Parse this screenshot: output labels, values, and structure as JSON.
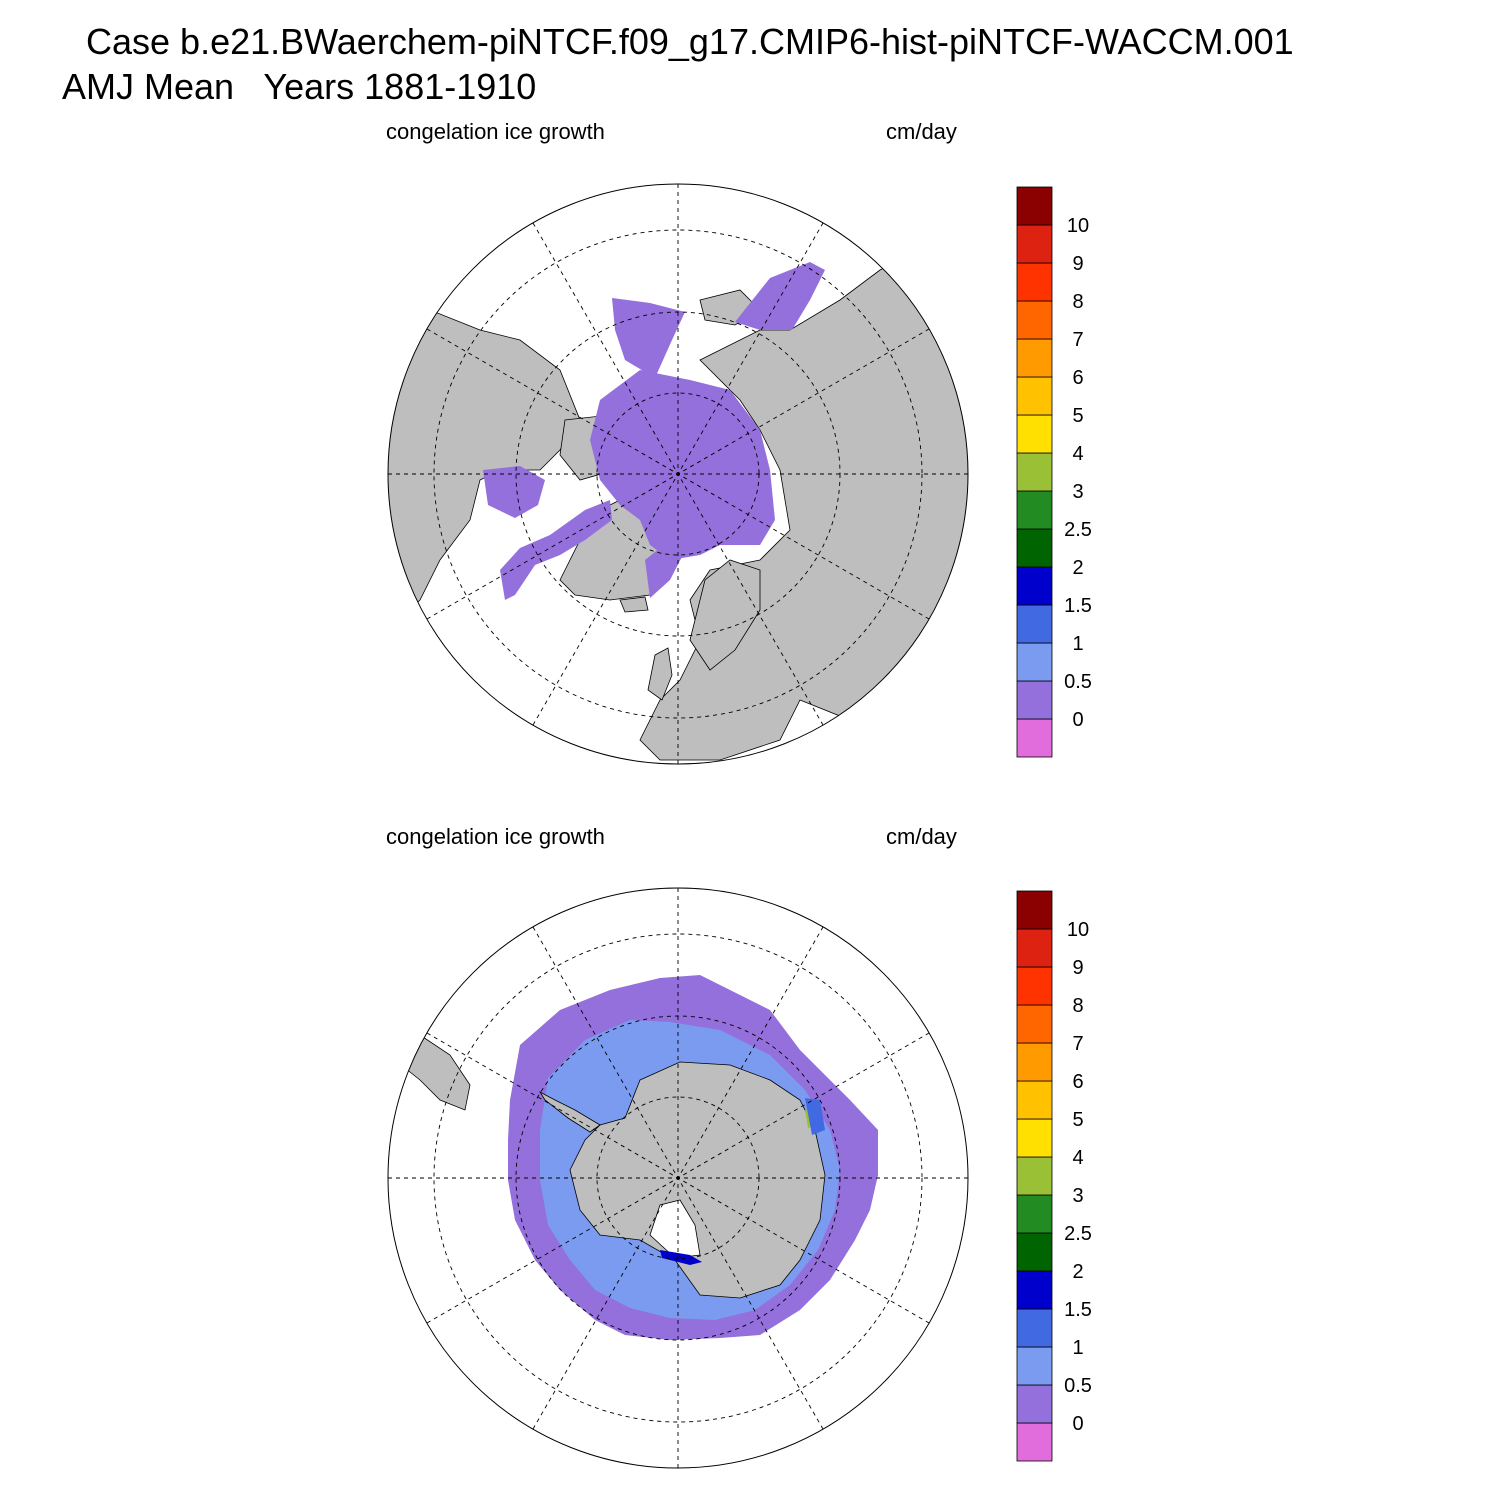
{
  "header": {
    "case_line": "Case b.e21.BWaerchem-piNTCF.f09_g17.CMIP6-hist-piNTCF-WACCM.001",
    "period_line": "AMJ Mean   Years 1881-1910"
  },
  "panels": [
    {
      "hemisphere": "north",
      "variable": "congelation ice growth",
      "units": "cm/day"
    },
    {
      "hemisphere": "south",
      "variable": "congelation ice growth",
      "units": "cm/day"
    }
  ],
  "colorbar": {
    "labels": [
      "0",
      "0.5",
      "1",
      "1.5",
      "2",
      "2.5",
      "3",
      "4",
      "5",
      "6",
      "7",
      "8",
      "9",
      "10"
    ],
    "colors": [
      "#e16ddc",
      "#9370db",
      "#7b9bf0",
      "#4169e1",
      "#0000cd",
      "#006400",
      "#228b22",
      "#9ac136",
      "#ffe000",
      "#ffc100",
      "#ff9a00",
      "#ff6600",
      "#ff3300",
      "#dd2211",
      "#8b0000"
    ]
  },
  "map_colors": {
    "land": "#bebebe",
    "ocean": "#ffffff"
  }
}
